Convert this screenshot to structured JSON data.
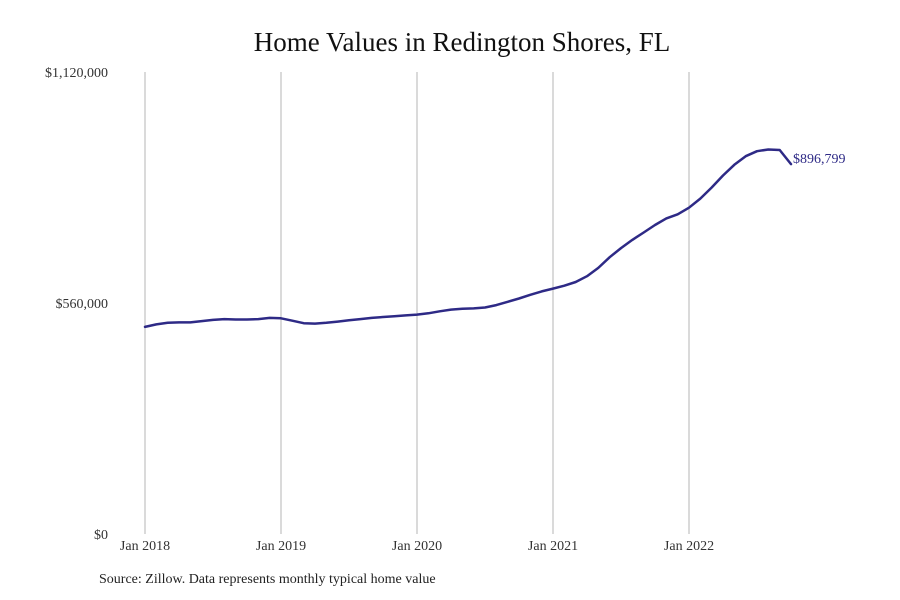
{
  "chart_data": {
    "type": "line",
    "title": "Home Values in Redington Shores, FL",
    "xlabel": "",
    "ylabel": "",
    "ylim": [
      0,
      1120000
    ],
    "y_ticks": [
      0,
      560000,
      1120000
    ],
    "y_tick_labels": [
      "$0",
      "$560,000",
      "$1,120,000"
    ],
    "x_tick_labels": [
      "Jan 2018",
      "Jan 2019",
      "Jan 2020",
      "Jan 2021",
      "Jan 2022"
    ],
    "grid": "vertical at x ticks",
    "line_color": "#2e2a86",
    "end_label": "$896,799",
    "series": [
      {
        "x": [
          "2018-01",
          "2018-02",
          "2018-03",
          "2018-04",
          "2018-05",
          "2018-06",
          "2018-07",
          "2018-08",
          "2018-09",
          "2018-10",
          "2018-11",
          "2018-12",
          "2019-01",
          "2019-02",
          "2019-03",
          "2019-04",
          "2019-05",
          "2019-06",
          "2019-07",
          "2019-08",
          "2019-09",
          "2019-10",
          "2019-11",
          "2019-12",
          "2020-01",
          "2020-02",
          "2020-03",
          "2020-04",
          "2020-05",
          "2020-06",
          "2020-07",
          "2020-08",
          "2020-09",
          "2020-10",
          "2020-11",
          "2020-12",
          "2021-01",
          "2021-02",
          "2021-03",
          "2021-04",
          "2021-05",
          "2021-06",
          "2021-07",
          "2021-08",
          "2021-09",
          "2021-10",
          "2021-11",
          "2021-12",
          "2022-01",
          "2022-02",
          "2022-03",
          "2022-04",
          "2022-05",
          "2022-06",
          "2022-07",
          "2022-08",
          "2022-09",
          "2022-10"
        ],
        "values": [
          502000,
          508000,
          512000,
          513000,
          513000,
          516000,
          519000,
          521000,
          520000,
          520000,
          521000,
          524000,
          523000,
          517000,
          511000,
          510000,
          512000,
          515000,
          518000,
          521000,
          524000,
          526000,
          528000,
          530000,
          532000,
          535000,
          540000,
          544000,
          546000,
          547000,
          549000,
          555000,
          563000,
          571000,
          580000,
          588000,
          595000,
          602000,
          611000,
          625000,
          645000,
          671000,
          693000,
          713000,
          731000,
          749000,
          765000,
          775000,
          791000,
          813000,
          840000,
          869000,
          895000,
          916000,
          928000,
          932000,
          931000,
          896799
        ]
      }
    ]
  },
  "source": "Source: Zillow. Data represents monthly typical home value"
}
